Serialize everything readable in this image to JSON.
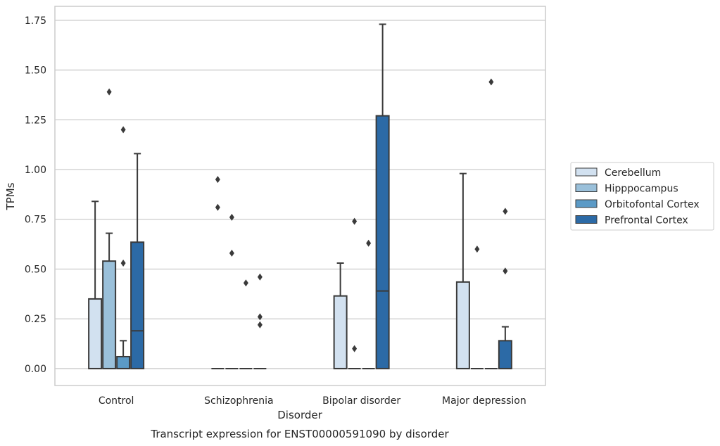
{
  "chart_data": {
    "type": "box",
    "title": "",
    "caption": "Transcript expression for ENST00000591090 by disorder",
    "xlabel": "Disorder",
    "ylabel": "TPMs",
    "ylim": [
      -0.085,
      1.82
    ],
    "yticks": [
      0.0,
      0.25,
      0.5,
      0.75,
      1.0,
      1.25,
      1.5,
      1.75
    ],
    "ytick_labels": [
      "0.00",
      "0.25",
      "0.50",
      "0.75",
      "1.00",
      "1.25",
      "1.50",
      "1.75"
    ],
    "grid": "horizontal",
    "legend_position": "right",
    "categories": [
      "Control",
      "Schizophrenia",
      "Bipolar disorder",
      "Major depression"
    ],
    "series": [
      {
        "name": "Cerebellum",
        "color": "#d2e1f0",
        "boxes": [
          {
            "q1": 0.0,
            "median": 0.0,
            "q3": 0.35,
            "whisker_low": 0.0,
            "whisker_high": 0.84,
            "outliers": []
          },
          {
            "q1": 0.0,
            "median": 0.0,
            "q3": 0.0,
            "whisker_low": 0.0,
            "whisker_high": 0.0,
            "outliers": [
              0.95,
              0.81
            ]
          },
          {
            "q1": 0.0,
            "median": 0.0,
            "q3": 0.365,
            "whisker_low": 0.0,
            "whisker_high": 0.53,
            "outliers": []
          },
          {
            "q1": 0.0,
            "median": 0.0,
            "q3": 0.435,
            "whisker_low": 0.0,
            "whisker_high": 0.98,
            "outliers": []
          }
        ]
      },
      {
        "name": "Hipppocampus",
        "color": "#9ac0da",
        "boxes": [
          {
            "q1": 0.0,
            "median": 0.0,
            "q3": 0.54,
            "whisker_low": 0.0,
            "whisker_high": 0.68,
            "outliers": [
              1.39
            ]
          },
          {
            "q1": 0.0,
            "median": 0.0,
            "q3": 0.0,
            "whisker_low": 0.0,
            "whisker_high": 0.0,
            "outliers": [
              0.76,
              0.58
            ]
          },
          {
            "q1": 0.0,
            "median": 0.0,
            "q3": 0.0,
            "whisker_low": 0.0,
            "whisker_high": 0.0,
            "outliers": [
              0.74,
              0.1
            ]
          },
          {
            "q1": 0.0,
            "median": 0.0,
            "q3": 0.0,
            "whisker_low": 0.0,
            "whisker_high": 0.0,
            "outliers": [
              0.6
            ]
          }
        ]
      },
      {
        "name": "Orbitofontal Cortex",
        "color": "#5b9ac6",
        "boxes": [
          {
            "q1": 0.0,
            "median": 0.0,
            "q3": 0.06,
            "whisker_low": 0.0,
            "whisker_high": 0.14,
            "outliers": [
              1.2,
              0.53
            ]
          },
          {
            "q1": 0.0,
            "median": 0.0,
            "q3": 0.0,
            "whisker_low": 0.0,
            "whisker_high": 0.0,
            "outliers": [
              0.43
            ]
          },
          {
            "q1": 0.0,
            "median": 0.0,
            "q3": 0.0,
            "whisker_low": 0.0,
            "whisker_high": 0.0,
            "outliers": [
              0.63
            ]
          },
          {
            "q1": 0.0,
            "median": 0.0,
            "q3": 0.0,
            "whisker_low": 0.0,
            "whisker_high": 0.0,
            "outliers": [
              1.44
            ]
          }
        ]
      },
      {
        "name": "Prefrontal Cortex",
        "color": "#2c6aa6",
        "boxes": [
          {
            "q1": 0.0,
            "median": 0.19,
            "q3": 0.635,
            "whisker_low": 0.0,
            "whisker_high": 1.08,
            "outliers": []
          },
          {
            "q1": 0.0,
            "median": 0.0,
            "q3": 0.0,
            "whisker_low": 0.0,
            "whisker_high": 0.0,
            "outliers": [
              0.46,
              0.26,
              0.22
            ]
          },
          {
            "q1": 0.0,
            "median": 0.39,
            "q3": 1.27,
            "whisker_low": 0.0,
            "whisker_high": 1.73,
            "outliers": []
          },
          {
            "q1": 0.0,
            "median": 0.0,
            "q3": 0.14,
            "whisker_low": 0.0,
            "whisker_high": 0.21,
            "outliers": [
              0.79,
              0.49
            ]
          }
        ]
      }
    ],
    "style": {
      "edge_color": "#3a3a3a",
      "grid_color": "#cccccc",
      "frame_color": "#cccccc",
      "outlier_color": "#3a3a3a"
    }
  }
}
